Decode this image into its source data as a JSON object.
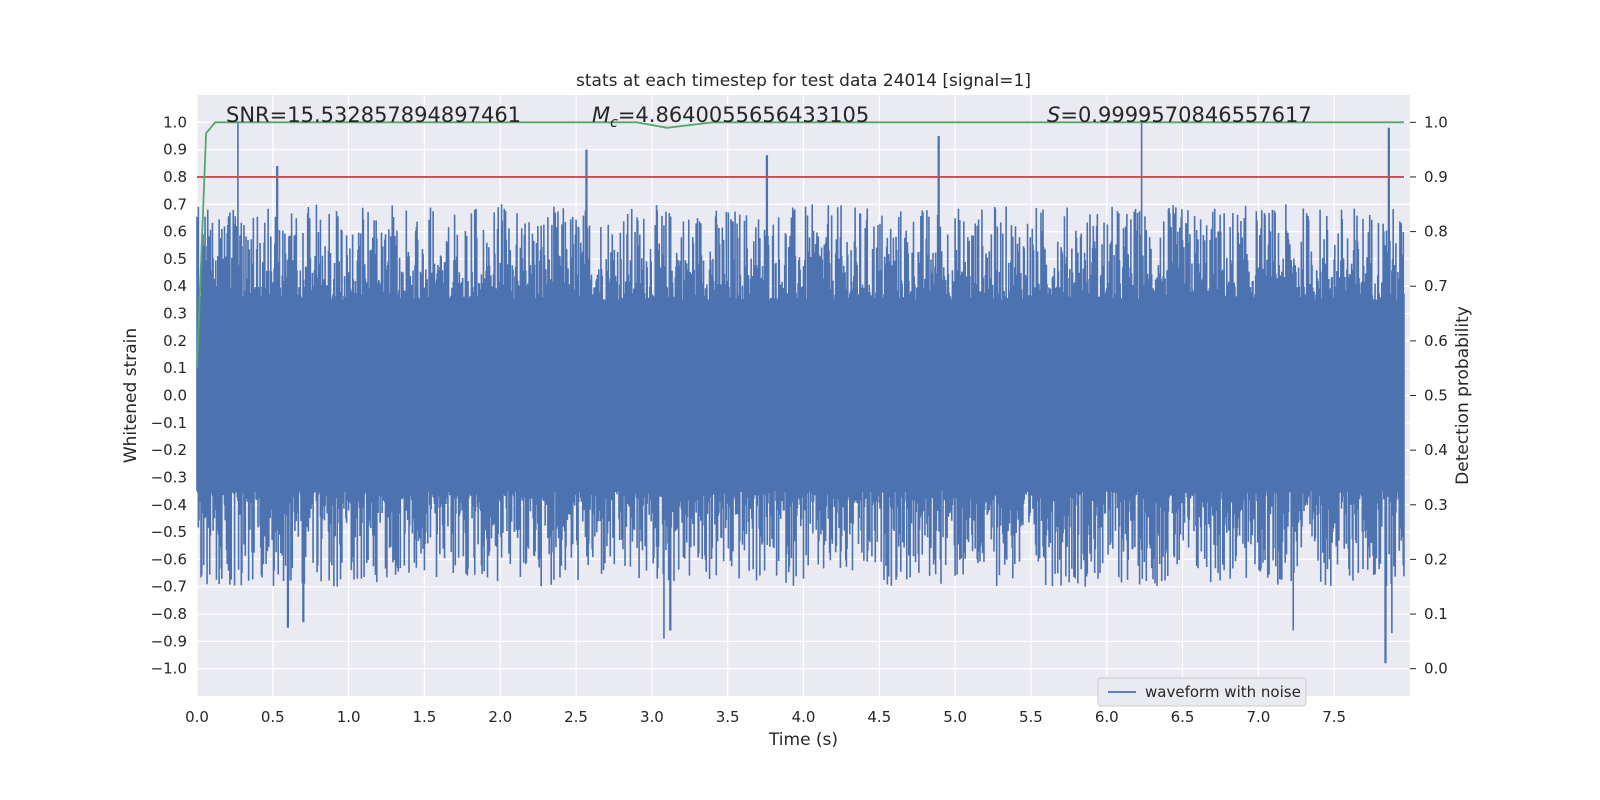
{
  "chart_data": {
    "type": "line",
    "title": "stats at each timestep for test data 24014 [signal=1]",
    "xlabel": "Time (s)",
    "ylabel": "Whitened strain",
    "y2label": "Detection probability",
    "xlim": [
      0.0,
      8.0
    ],
    "ylim": [
      -1.1,
      1.1
    ],
    "y2lim": [
      -0.05,
      1.05
    ],
    "xticks": [
      "0.0",
      "0.5",
      "1.0",
      "1.5",
      "2.0",
      "2.5",
      "3.0",
      "3.5",
      "4.0",
      "4.5",
      "5.0",
      "5.5",
      "6.0",
      "6.5",
      "7.0",
      "7.5"
    ],
    "yticks": [
      "−1.0",
      "−0.9",
      "−0.8",
      "−0.7",
      "−0.6",
      "−0.5",
      "−0.4",
      "−0.3",
      "−0.2",
      "−0.1",
      "0.0",
      "0.1",
      "0.2",
      "0.3",
      "0.4",
      "0.5",
      "0.6",
      "0.7",
      "0.8",
      "0.9",
      "1.0"
    ],
    "y2ticks": [
      "0.0",
      "0.1",
      "0.2",
      "0.3",
      "0.4",
      "0.5",
      "0.6",
      "0.7",
      "0.8",
      "0.9",
      "1.0"
    ],
    "grid": true,
    "legend_placement": "lower-right",
    "annotations": {
      "snr": "SNR=15.532857894897461",
      "mc_symbol": "M",
      "mc_sub": "c",
      "mc_value": "=4.8640055656433105",
      "s_symbol": "S",
      "s_value": "=0.9999570846557617"
    },
    "series": [
      {
        "name": "waveform with noise",
        "axis": "left",
        "color": "#4c72b0",
        "envelope_note_values": {
          "typical_upper": 0.4,
          "typical_lower": -0.4,
          "peaks": [
            {
              "x": 0.27,
              "y": 1.0
            },
            {
              "x": 0.53,
              "y": 0.84
            },
            {
              "x": 2.57,
              "y": 0.9
            },
            {
              "x": 3.76,
              "y": 0.88
            },
            {
              "x": 4.89,
              "y": 0.95
            },
            {
              "x": 6.23,
              "y": 1.0
            },
            {
              "x": 7.86,
              "y": 0.98
            }
          ],
          "troughs": [
            {
              "x": 0.6,
              "y": -0.85
            },
            {
              "x": 0.7,
              "y": -0.83
            },
            {
              "x": 3.08,
              "y": -0.89
            },
            {
              "x": 3.12,
              "y": -0.86
            },
            {
              "x": 7.23,
              "y": -0.86
            },
            {
              "x": 7.84,
              "y": -0.98
            },
            {
              "x": 7.88,
              "y": -0.87
            }
          ]
        }
      },
      {
        "name": "",
        "axis": "right",
        "color": "#55a868",
        "x": [
          0.0,
          0.06,
          0.12,
          2.5,
          2.9,
          3.1,
          3.4,
          3.8,
          8.0
        ],
        "values": [
          0.55,
          0.98,
          1.0,
          1.0,
          1.0,
          0.99,
          1.0,
          1.0,
          1.0
        ]
      },
      {
        "name": "",
        "axis": "right",
        "color": "#c44e52",
        "x": [
          0.0,
          8.0
        ],
        "values": [
          0.9,
          0.9
        ]
      }
    ]
  }
}
